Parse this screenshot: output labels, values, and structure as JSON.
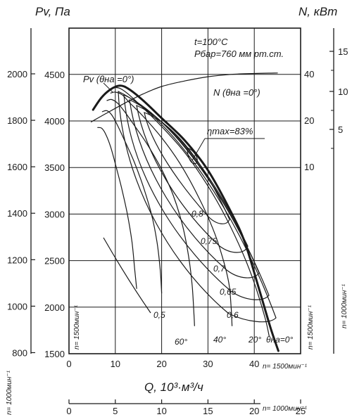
{
  "chart_data": {
    "type": "line",
    "title": "",
    "xlabel": "Q, 10³·м³/ч",
    "y_left_outer_label": "Pv, Па",
    "y_right_outer_label": "N, кВт",
    "conditions": [
      "t=100°C",
      "Pбар=760 мм рт.ст."
    ],
    "x_axis": {
      "min": 0,
      "max": 50,
      "ticks": [
        0,
        10,
        20,
        30,
        40
      ]
    },
    "x_axis_1000": {
      "ticks": [
        0,
        5,
        10,
        15,
        20,
        25
      ]
    },
    "y_axis_1500": {
      "min": 1500,
      "max": 4950,
      "ticks": [
        1500,
        2000,
        2500,
        3000,
        3500,
        4000,
        4500
      ]
    },
    "y_axis_1000": {
      "ticks": [
        800,
        1000,
        1200,
        1400,
        1600,
        1800,
        2000
      ]
    },
    "n_axis_1500": {
      "ticks": [
        10,
        20,
        30,
        40
      ]
    },
    "n_axis_1000": {
      "ticks": [
        5,
        10,
        15
      ]
    },
    "speed_labels": {
      "x_1500": "n= 1500мин⁻¹",
      "x_1000": "n= 1000мин⁻¹",
      "y_1500_left": "n= 1500мин⁻¹",
      "y_1000_left": "n= 1000мин⁻¹",
      "y_1500_right": "n= 1500мин⁻¹",
      "y_1000_right": "n= 1000мин⁻¹"
    },
    "series": [
      {
        "name": "Pv (θна =0°)",
        "role": "pressure_envelope",
        "points": [
          [
            5.2,
            4120
          ],
          [
            7,
            4250
          ],
          [
            9,
            4340
          ],
          [
            11,
            4380
          ],
          [
            13,
            4340
          ],
          [
            16,
            4220
          ],
          [
            20,
            4030
          ],
          [
            25,
            3790
          ],
          [
            30,
            3470
          ],
          [
            35,
            3020
          ],
          [
            38,
            2690
          ],
          [
            41,
            2200
          ],
          [
            43.5,
            1780
          ],
          [
            45.2,
            1530
          ]
        ]
      },
      {
        "name": "N (θна =0°)",
        "role": "power",
        "points": [
          [
            4.8,
            3990
          ],
          [
            8,
            4080
          ],
          [
            12,
            4190
          ],
          [
            16,
            4290
          ],
          [
            20,
            4370
          ],
          [
            25,
            4430
          ],
          [
            30,
            4475
          ],
          [
            35,
            4500
          ],
          [
            40,
            4510
          ],
          [
            45,
            4515
          ]
        ]
      },
      {
        "name": "20°",
        "role": "blade_angle",
        "points": [
          [
            9.5,
            4360
          ],
          [
            11,
            4350
          ],
          [
            13,
            4280
          ],
          [
            16,
            4140
          ],
          [
            20,
            3940
          ],
          [
            25,
            3660
          ],
          [
            30,
            3300
          ],
          [
            34,
            2950
          ],
          [
            37.5,
            2580
          ],
          [
            40,
            2260
          ],
          [
            42.3,
            1890
          ],
          [
            43.2,
            1690
          ]
        ]
      },
      {
        "name": "40°",
        "role": "blade_angle",
        "points": [
          [
            9,
            4300
          ],
          [
            10,
            4310
          ],
          [
            11.5,
            4280
          ],
          [
            13,
            4200
          ],
          [
            16,
            4050
          ],
          [
            20,
            3820
          ],
          [
            24,
            3540
          ],
          [
            28,
            3180
          ],
          [
            31,
            2850
          ],
          [
            33,
            2560
          ],
          [
            34.5,
            2260
          ],
          [
            35,
            2000
          ],
          [
            35.2,
            1800
          ]
        ]
      },
      {
        "name": "60°",
        "role": "blade_angle",
        "points": [
          [
            8.2,
            4220
          ],
          [
            9.2,
            4230
          ],
          [
            10.5,
            4190
          ],
          [
            12,
            4100
          ],
          [
            14,
            3960
          ],
          [
            17,
            3740
          ],
          [
            20,
            3480
          ],
          [
            22.5,
            3200
          ],
          [
            24.5,
            2880
          ],
          [
            25.8,
            2550
          ],
          [
            26.6,
            2230
          ],
          [
            27,
            1900
          ],
          [
            27.1,
            1800
          ]
        ]
      },
      {
        "name": "",
        "role": "blade_angle",
        "points": [
          [
            7.2,
            4100
          ],
          [
            8.2,
            4110
          ],
          [
            9.3,
            4060
          ],
          [
            10.5,
            3950
          ],
          [
            12,
            3790
          ],
          [
            14,
            3570
          ],
          [
            16,
            3300
          ],
          [
            17.8,
            3000
          ],
          [
            19,
            2700
          ],
          [
            19.7,
            2400
          ],
          [
            20,
            2150
          ]
        ]
      },
      {
        "name": "",
        "role": "blade_angle",
        "points": [
          [
            6.2,
            3930
          ],
          [
            7.1,
            3920
          ],
          [
            8,
            3850
          ],
          [
            9,
            3720
          ],
          [
            10,
            3540
          ],
          [
            11.3,
            3290
          ],
          [
            12.6,
            3000
          ],
          [
            13.6,
            2700
          ],
          [
            14.2,
            2400
          ],
          [
            14.6,
            2200
          ]
        ]
      }
    ],
    "efficiency_contours": [
      {
        "label": "ηmax=83%",
        "peak": true
      },
      {
        "label": "0,8"
      },
      {
        "label": "0,75"
      },
      {
        "label": "0,7"
      },
      {
        "label": "0,65"
      },
      {
        "label": "0,6"
      },
      {
        "label": "0,5"
      }
    ],
    "blade_angle_labels": [
      "20°",
      "40°",
      "60°"
    ],
    "blade_angle_key": "θна=0°",
    "grid": true
  }
}
